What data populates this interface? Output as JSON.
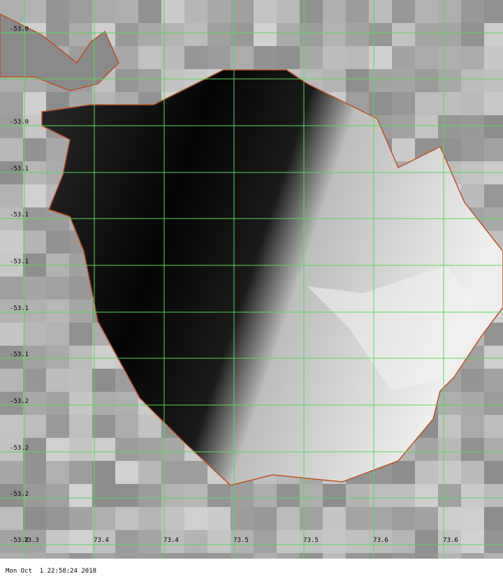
{
  "map": {
    "y_labels": [
      "-53.0",
      "-53.0",
      "-53.1",
      "-53.1",
      "-53.1",
      "-53.1",
      "-53.1",
      "-53.2",
      "-53.2",
      "-53.2",
      "-53.2"
    ],
    "x_labels": [
      "73.3",
      "73.4",
      "73.4",
      "73.5",
      "73.5",
      "73.6",
      "73.6"
    ],
    "timestamp": "Mon Oct  1 22:58:24 2018"
  }
}
